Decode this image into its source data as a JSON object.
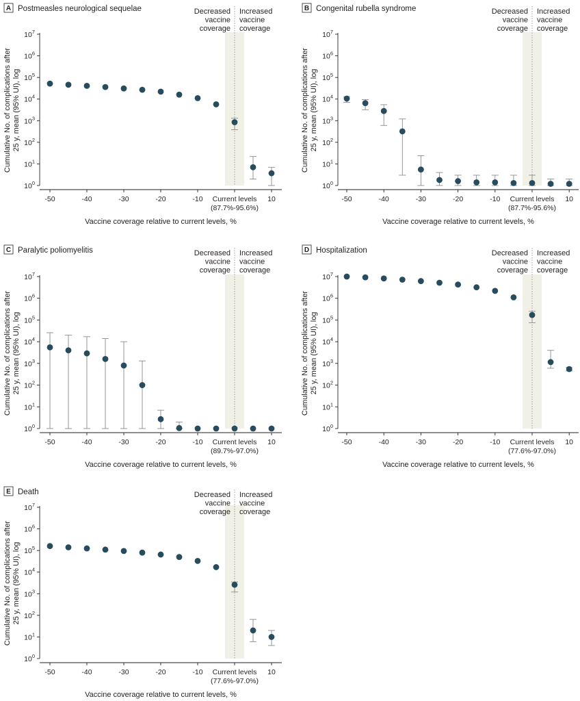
{
  "figure": {
    "x_axis_label": "Vaccine coverage relative to current levels, %",
    "y_axis_label_line1": "Cumulative No. of complications after",
    "y_axis_label_line2": "25 y, mean (95% UI), log",
    "decreased_label": [
      "Decreased",
      "vaccine",
      "coverage"
    ],
    "increased_label": [
      "Increased",
      "vaccine",
      "coverage"
    ],
    "x_tick_labels": [
      "-50",
      "-40",
      "-30",
      "-20",
      "-10",
      "Current levels",
      "10"
    ],
    "y_tick_labels": [
      {
        "base": "10",
        "exp": "0"
      },
      {
        "base": "10",
        "exp": "1"
      },
      {
        "base": "10",
        "exp": "2"
      },
      {
        "base": "10",
        "exp": "3"
      },
      {
        "base": "10",
        "exp": "4"
      },
      {
        "base": "10",
        "exp": "5"
      },
      {
        "base": "10",
        "exp": "6"
      },
      {
        "base": "10",
        "exp": "7"
      }
    ],
    "colors": {
      "point": "#264c5d",
      "band": "#f0f0e6",
      "error": "#8a8a8a",
      "axis": "#231f20"
    }
  },
  "chart_data": [
    {
      "type": "scatter",
      "panel": "A",
      "title": "Postmeasles neurological sequelae",
      "current_range": "(87.7%-95.6%)",
      "ylim_log10": [
        0,
        7
      ],
      "x": [
        -50,
        -45,
        -40,
        -35,
        -30,
        -25,
        -20,
        -15,
        -10,
        -5,
        0,
        5,
        10
      ],
      "mean": [
        52000,
        46000,
        41000,
        36000,
        31000,
        27000,
        22000,
        16000,
        11000,
        5700,
        850,
        7,
        3.7
      ],
      "lower": [
        null,
        null,
        null,
        null,
        null,
        null,
        null,
        null,
        null,
        null,
        380,
        2,
        1
      ],
      "upper": [
        null,
        null,
        null,
        null,
        null,
        null,
        null,
        null,
        null,
        null,
        1300,
        22,
        7
      ]
    },
    {
      "type": "scatter",
      "panel": "B",
      "title": "Congenital rubella syndrome",
      "current_range": "(87.7%-95.6%)",
      "ylim_log10": [
        0,
        7
      ],
      "x": [
        -50,
        -45,
        -40,
        -35,
        -30,
        -25,
        -20,
        -15,
        -10,
        -5,
        0,
        5,
        10
      ],
      "mean": [
        10500,
        6500,
        2800,
        320,
        5.5,
        1.8,
        1.6,
        1.4,
        1.4,
        1.3,
        1.3,
        1.2,
        1.2
      ],
      "lower": [
        7000,
        3200,
        600,
        3,
        1,
        1,
        1,
        1,
        1,
        1,
        1,
        1,
        1
      ],
      "upper": [
        13000,
        9500,
        5500,
        1200,
        24,
        4,
        3,
        3,
        3,
        3,
        3,
        2,
        2
      ]
    },
    {
      "type": "scatter",
      "panel": "C",
      "title": "Paralytic poliomyelitis",
      "current_range": "(89.7%-97.0%)",
      "ylim_log10": [
        0,
        7
      ],
      "x": [
        -50,
        -45,
        -40,
        -35,
        -30,
        -25,
        -20,
        -15,
        -10,
        -5,
        0,
        5,
        10
      ],
      "mean": [
        5500,
        4000,
        2900,
        1600,
        800,
        100,
        2.7,
        1.05,
        1,
        1,
        1,
        1,
        1
      ],
      "lower": [
        1,
        1,
        1,
        1,
        1,
        1,
        1,
        1,
        null,
        null,
        null,
        null,
        null
      ],
      "upper": [
        26000,
        20000,
        17000,
        14000,
        10000,
        1300,
        7,
        2,
        null,
        null,
        null,
        null,
        null
      ]
    },
    {
      "type": "scatter",
      "panel": "D",
      "title": "Hospitalization",
      "current_range": "(77.6%-97.0%)",
      "ylim_log10": [
        0,
        7
      ],
      "x": [
        -50,
        -45,
        -40,
        -35,
        -30,
        -25,
        -20,
        -15,
        -10,
        -5,
        0,
        5,
        10
      ],
      "mean": [
        10000000,
        9200000,
        8200000,
        7200000,
        6200000,
        5200000,
        4300000,
        3200000,
        2200000,
        1100000,
        170000,
        1150,
        550
      ],
      "lower": [
        null,
        null,
        null,
        null,
        null,
        null,
        null,
        null,
        null,
        null,
        75000,
        600,
        450
      ],
      "upper": [
        null,
        null,
        null,
        null,
        null,
        null,
        null,
        null,
        null,
        null,
        250000,
        4000,
        650
      ]
    },
    {
      "type": "scatter",
      "panel": "E",
      "title": "Death",
      "current_range": "(77.6%-97.0%)",
      "ylim_log10": [
        0,
        7
      ],
      "x": [
        -50,
        -45,
        -40,
        -35,
        -30,
        -25,
        -20,
        -15,
        -10,
        -5,
        0,
        5,
        10
      ],
      "mean": [
        160000,
        140000,
        125000,
        110000,
        95000,
        80000,
        65000,
        50000,
        33000,
        17000,
        2600,
        20,
        10
      ],
      "lower": [
        null,
        null,
        null,
        null,
        null,
        null,
        null,
        null,
        null,
        null,
        1200,
        6,
        4
      ],
      "upper": [
        null,
        null,
        null,
        null,
        null,
        null,
        null,
        null,
        null,
        null,
        3500,
        65,
        20
      ]
    }
  ]
}
